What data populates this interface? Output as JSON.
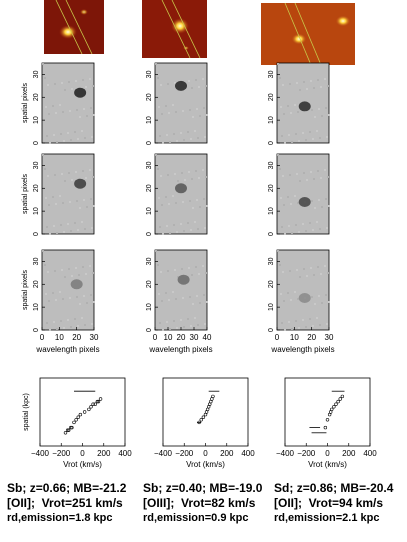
{
  "columns": [
    {
      "galaxy_type": "Sb",
      "redshift": "z=0.66",
      "mb_value": "-21.2",
      "emission_line": "[OII]",
      "vrot": "Vrot=251 km/s",
      "rd_label": "rd,emission=1.8 kpc",
      "rc_points": [
        [
          -160,
          -8
        ],
        [
          -140,
          -7
        ],
        [
          -130,
          -7
        ],
        [
          -110,
          -6
        ],
        [
          -100,
          -6
        ],
        [
          -80,
          -4
        ],
        [
          -60,
          -3
        ],
        [
          -40,
          -2
        ],
        [
          -20,
          -1
        ],
        [
          20,
          0
        ],
        [
          60,
          1
        ],
        [
          80,
          2
        ],
        [
          100,
          3
        ],
        [
          120,
          3
        ],
        [
          140,
          4
        ],
        [
          150,
          4
        ],
        [
          170,
          5
        ]
      ],
      "rc_errbar": [
        [
          20,
          8,
          200
        ]
      ]
    },
    {
      "galaxy_type": "Sb",
      "redshift": "z=0.40",
      "mb_value": "-19.0",
      "emission_line": "[OIII]",
      "vrot": "Vrot=82 km/s",
      "rd_label": "rd,emission=0.9 kpc",
      "rc_points": [
        [
          -60,
          -4
        ],
        [
          -40,
          -3
        ],
        [
          -20,
          -2
        ],
        [
          0,
          -1
        ],
        [
          10,
          0
        ],
        [
          20,
          1
        ],
        [
          30,
          2
        ],
        [
          40,
          3
        ],
        [
          50,
          4
        ],
        [
          60,
          5
        ],
        [
          70,
          6
        ]
      ],
      "rc_errbar": [
        [
          -60,
          -4,
          40
        ],
        [
          80,
          8,
          100
        ]
      ]
    },
    {
      "galaxy_type": "Sd",
      "redshift": "z=0.86",
      "mb_value": "-20.4",
      "emission_line": "[OII]",
      "vrot": "Vrot=94 km/s",
      "rd_label": "rd,emission=2.1 kpc",
      "rc_points": [
        [
          -20,
          -6
        ],
        [
          0,
          -3
        ],
        [
          20,
          -1
        ],
        [
          30,
          0
        ],
        [
          40,
          1
        ],
        [
          60,
          2
        ],
        [
          80,
          3
        ],
        [
          100,
          4
        ],
        [
          120,
          5
        ],
        [
          140,
          6
        ]
      ],
      "rc_errbar": [
        [
          -80,
          -8,
          140
        ],
        [
          -120,
          -6,
          100
        ],
        [
          100,
          8,
          120
        ]
      ]
    }
  ],
  "labels": {
    "mb_prefix": "MB=",
    "spatial_pixels": "spatial pixels",
    "wavelength_pixels": "wavelength pixels",
    "spatial_kpc": "spatial (kpc)",
    "vrot_axis": "Vrot (km/s)"
  },
  "chart_data": [
    {
      "type": "scatter",
      "xlabel": "Vrot (km/s)",
      "ylabel": "spatial (kpc)",
      "xlim": [
        -400,
        400
      ]
    },
    {
      "type": "scatter",
      "xlabel": "Vrot (km/s)",
      "ylabel": "",
      "xlim": [
        -400,
        400
      ]
    },
    {
      "type": "scatter",
      "xlabel": "Vrot (km/s)",
      "ylabel": "",
      "xlim": [
        -400,
        400
      ]
    }
  ],
  "ticks": {
    "spatial": [
      "0",
      "10",
      "20",
      "30"
    ],
    "wavelength_col1": [
      "0",
      "10",
      "20",
      "30"
    ],
    "wavelength_col2": [
      "0",
      "10",
      "20",
      "30",
      "40"
    ],
    "wavelength_col3": [
      "0",
      "10",
      "20",
      "30"
    ],
    "vrot": [
      "−400",
      "−200",
      "0",
      "200",
      "400"
    ]
  },
  "colors": {
    "thumb_bg": "#8b1a0a",
    "thumb_glow": "#ffe24a",
    "panel_gray": "#bdbdbd",
    "blob": "#2a2a2a"
  }
}
